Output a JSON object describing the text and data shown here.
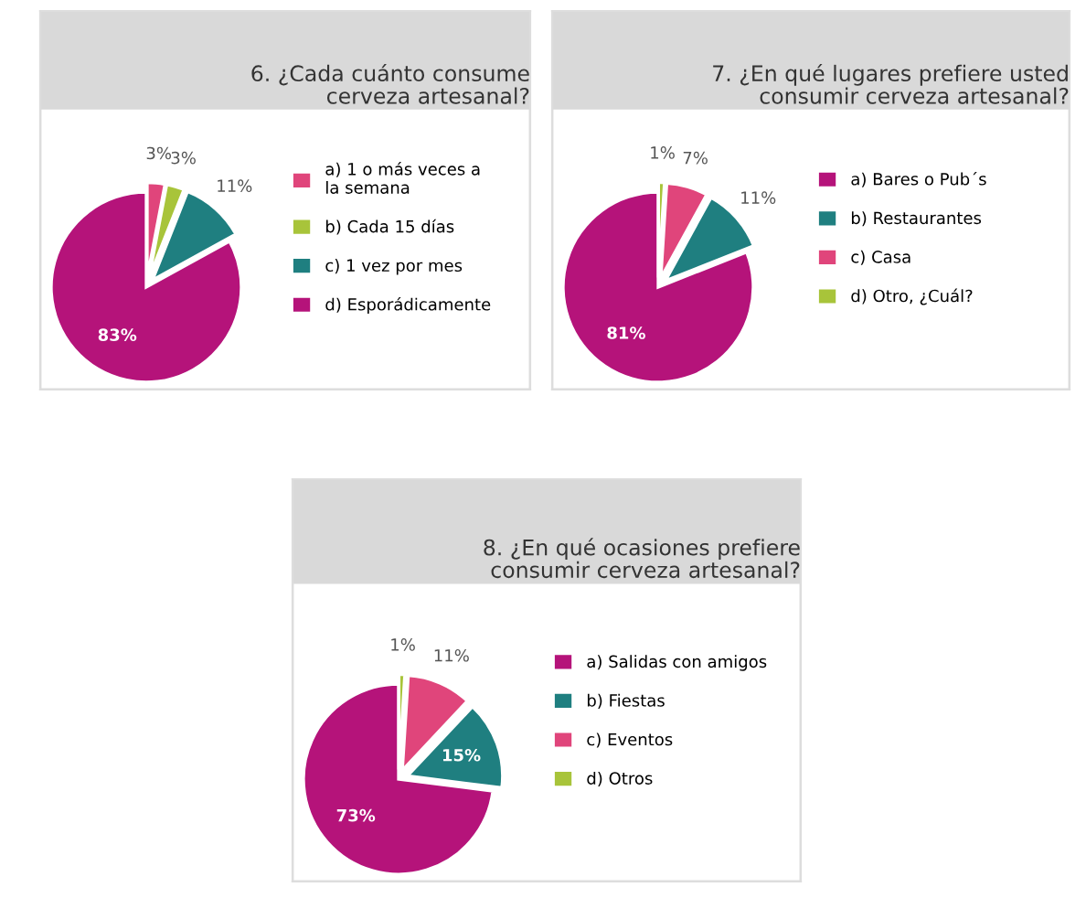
{
  "chart_data": [
    {
      "type": "pie",
      "title": "6. ¿Cada cuánto consume\ncerveza artesanal?",
      "categories": [
        "a) 1 o más veces a\nla semana",
        "b) Cada 15 días",
        "c) 1 vez por mes",
        "d) Esporádicamente"
      ],
      "values": [
        3,
        3,
        11,
        83
      ],
      "value_labels": [
        "3%",
        "3%",
        "11%",
        "83%"
      ],
      "colors": [
        "#e0457b",
        "#a8c43a",
        "#1f7f80",
        "#b5137a"
      ],
      "legend": "right"
    },
    {
      "type": "pie",
      "title": "7. ¿En qué lugares prefiere usted\nconsumir cerveza artesanal?",
      "categories": [
        "a) Bares o Pub´s",
        "b) Restaurantes",
        "c) Casa",
        "d) Otro, ¿Cuál?"
      ],
      "values": [
        81,
        11,
        7,
        1
      ],
      "value_labels": [
        "81%",
        "11%",
        "7%",
        "1%"
      ],
      "colors": [
        "#b5137a",
        "#1f7f80",
        "#e0457b",
        "#a8c43a"
      ],
      "legend": "right"
    },
    {
      "type": "pie",
      "title": "8. ¿En qué ocasiones prefiere\nconsumir cerveza artesanal?",
      "categories": [
        "a) Salidas con amigos",
        "b) Fiestas",
        "c) Eventos",
        "d) Otros"
      ],
      "values": [
        73,
        15,
        11,
        1
      ],
      "value_labels": [
        "73%",
        "15%",
        "11%",
        "1%"
      ],
      "colors": [
        "#b5137a",
        "#1f7f80",
        "#e0457b",
        "#a8c43a"
      ],
      "legend": "right"
    }
  ]
}
